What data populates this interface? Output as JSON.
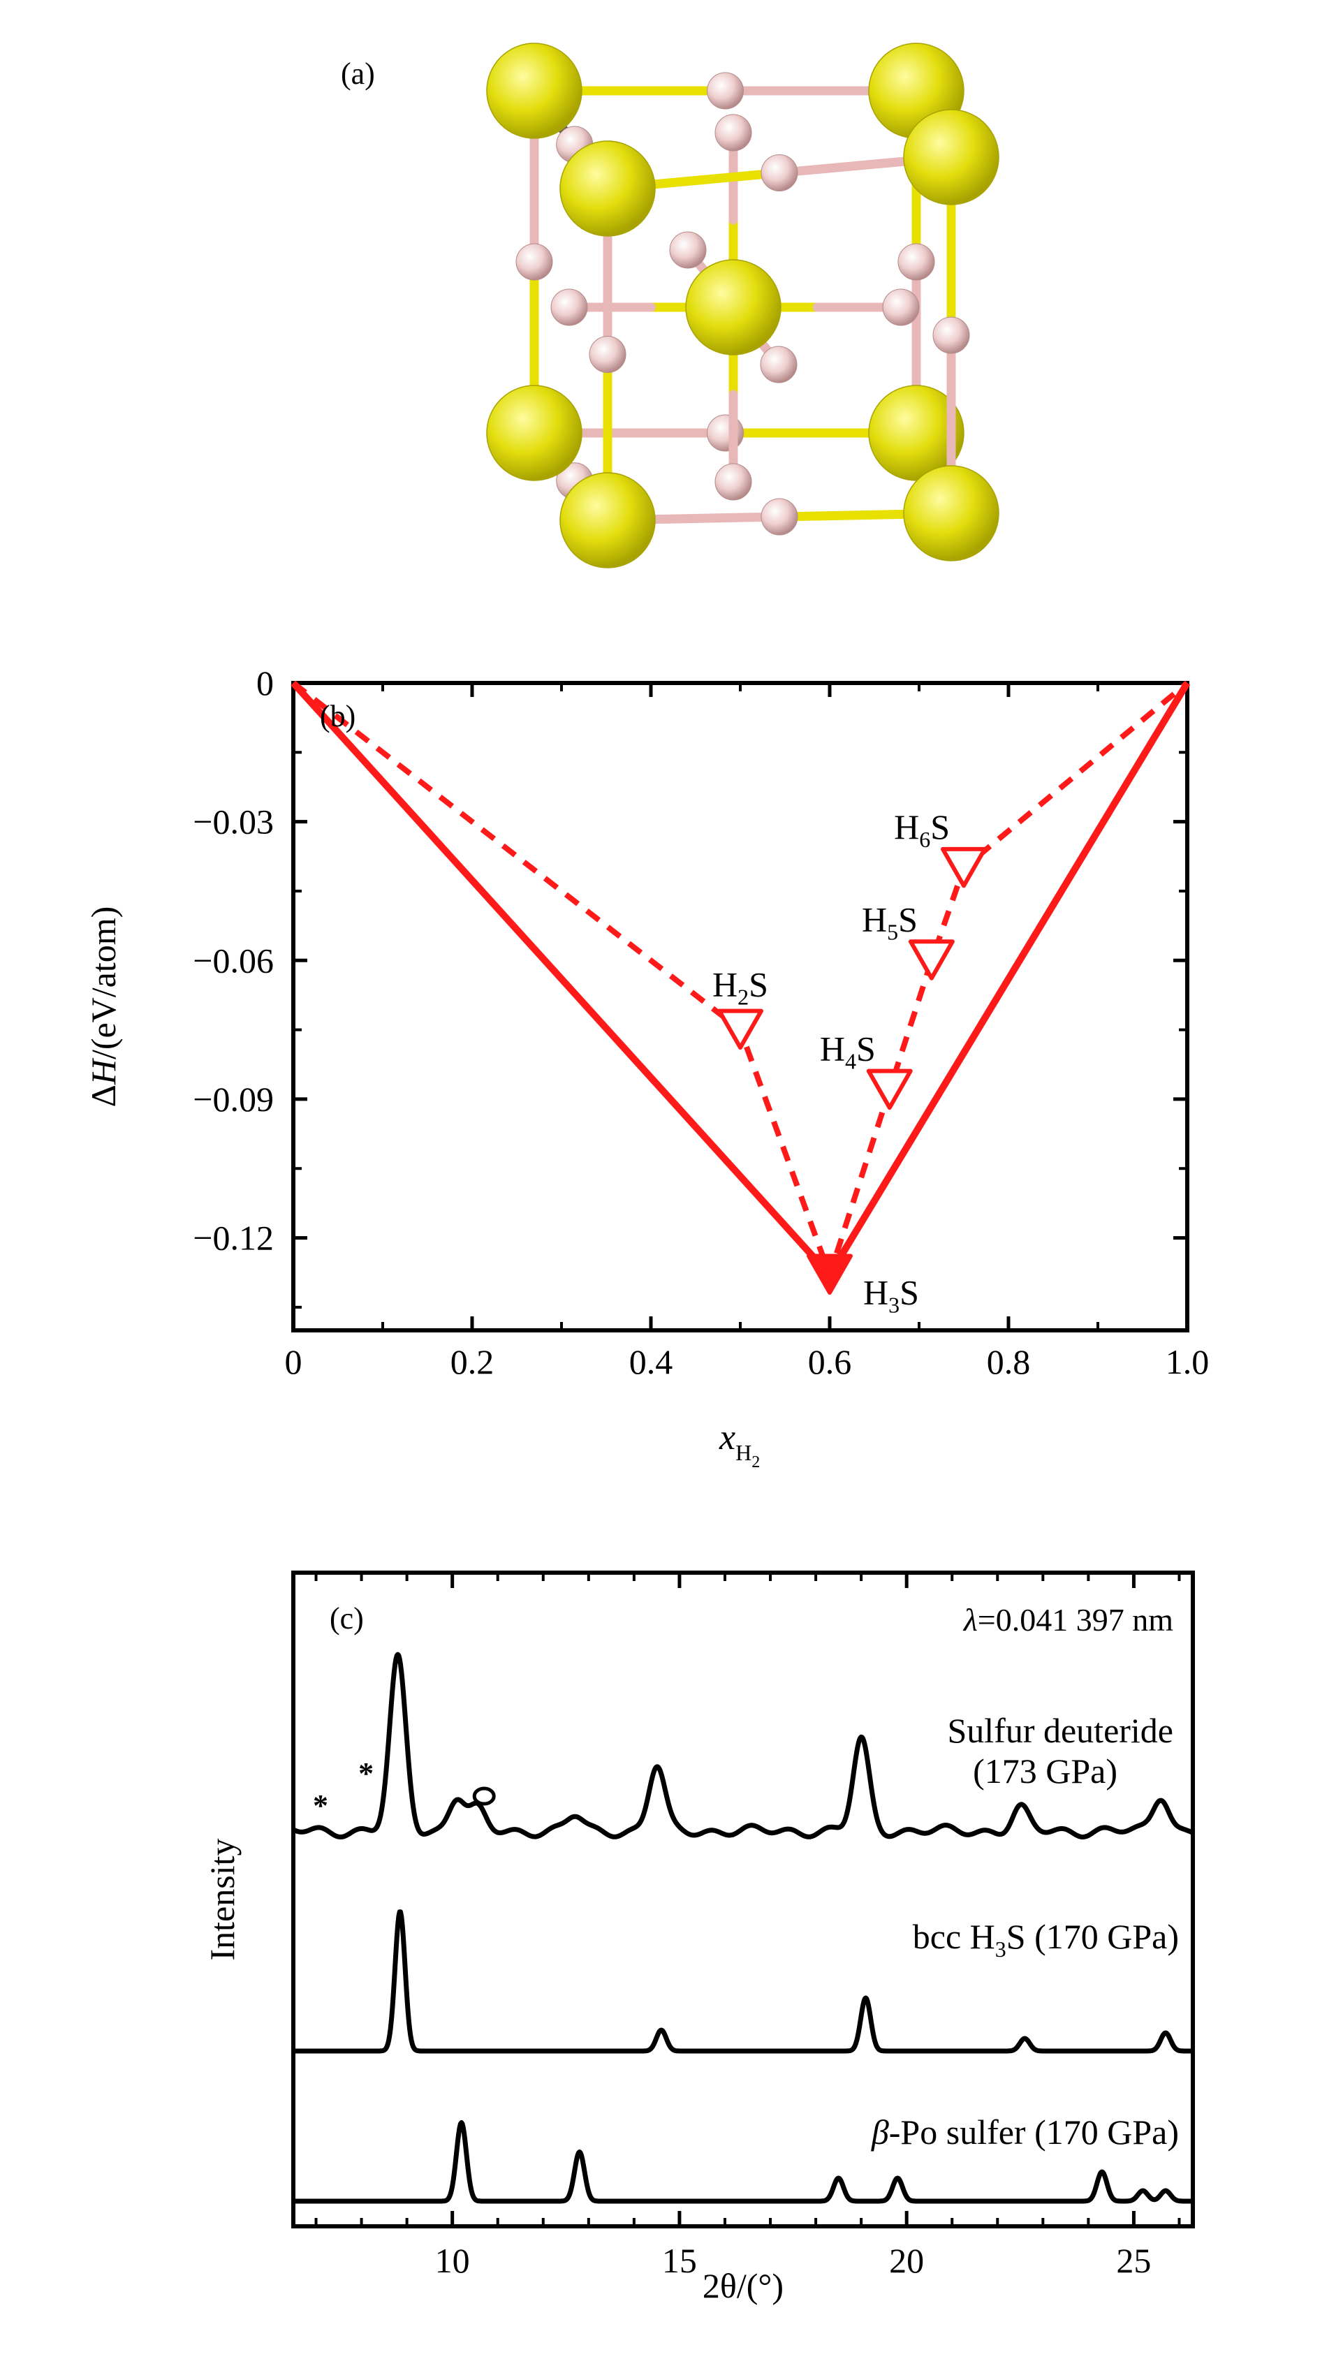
{
  "panels": {
    "a": {
      "label": "(a)"
    },
    "b": {
      "label": "(b)"
    },
    "c": {
      "label": "(c)"
    }
  },
  "colors": {
    "sulfur": "#e3de0e",
    "sulfur_dark": "#a8a300",
    "hydrogen": "#efcfcf",
    "hydrogen_dark": "#b58a8a",
    "bond_yellow": "#e8e000",
    "bond_pink": "#e8b8b8",
    "series_red": "#ff1a1a",
    "line_black": "#000000"
  },
  "chart_data": [
    {
      "type": "line",
      "panel": "b",
      "xlabel": "x",
      "xlabel_sub": "H",
      "xlabel_subsub": "2",
      "ylabel_prefix": "ΔH",
      "ylabel_suffix": "/(eV/atom)",
      "xlim": [
        0,
        1.0
      ],
      "ylim": [
        -0.14,
        0
      ],
      "xticks": [
        0,
        0.2,
        0.4,
        0.6,
        0.8,
        1.0
      ],
      "xtick_labels": [
        "0",
        "0.2",
        "0.4",
        "0.6",
        "0.8",
        "1.0"
      ],
      "yticks": [
        0,
        -0.03,
        -0.06,
        -0.09,
        -0.12
      ],
      "ytick_labels": [
        "0",
        "−0.03",
        "−0.06",
        "−0.09",
        "−0.12"
      ],
      "hull": {
        "x": [
          0,
          0.6,
          1.0
        ],
        "y": [
          0,
          -0.128,
          0
        ],
        "style": "solid"
      },
      "metastable": {
        "x": [
          0,
          0.5,
          0.6,
          0.667,
          0.714,
          0.75,
          1.0
        ],
        "y": [
          0,
          -0.075,
          -0.128,
          -0.088,
          -0.06,
          -0.04,
          0
        ],
        "style": "dashed"
      },
      "points": [
        {
          "x": 0.5,
          "y": -0.075,
          "name": "H",
          "sub": "2",
          "suffix": "S",
          "filled": false
        },
        {
          "x": 0.667,
          "y": -0.088,
          "name": "H",
          "sub": "4",
          "suffix": "S",
          "filled": false
        },
        {
          "x": 0.714,
          "y": -0.06,
          "name": "H",
          "sub": "5",
          "suffix": "S",
          "filled": false
        },
        {
          "x": 0.75,
          "y": -0.04,
          "name": "H",
          "sub": "6",
          "suffix": "S",
          "filled": false
        },
        {
          "x": 0.6,
          "y": -0.128,
          "name": "H",
          "sub": "3",
          "suffix": "S",
          "filled": true
        }
      ]
    },
    {
      "type": "line",
      "panel": "c",
      "xlabel": "2θ/(°)",
      "ylabel": "Intensity",
      "annotation": "λ=0.041 397 nm",
      "xlim": [
        6.5,
        26.3
      ],
      "xticks": [
        10,
        15,
        20,
        25
      ],
      "xtick_labels": [
        "10",
        "15",
        "20",
        "25"
      ],
      "series": [
        {
          "label_lines": [
            "Sulfur deuteride",
            "(173 GPa)"
          ],
          "peaks": [
            [
              8.8,
              1.0
            ],
            [
              10.1,
              0.2
            ],
            [
              10.55,
              0.12
            ],
            [
              12.7,
              0.09
            ],
            [
              14.5,
              0.38
            ],
            [
              19.0,
              0.53
            ],
            [
              22.5,
              0.13
            ],
            [
              25.6,
              0.21
            ]
          ],
          "markers": [
            {
              "x": 7.1,
              "symbol": "*"
            },
            {
              "x": 8.1,
              "symbol": "*"
            },
            {
              "x": 10.7,
              "symbol": "o"
            }
          ]
        },
        {
          "label_prefix": "bcc H",
          "label_sub": "3",
          "label_suffix": "S (170 GPa)",
          "peaks": [
            [
              8.85,
              1.0
            ],
            [
              14.6,
              0.15
            ],
            [
              19.1,
              0.38
            ],
            [
              22.6,
              0.09
            ],
            [
              25.7,
              0.13
            ]
          ]
        },
        {
          "label_prefix": "β",
          "label_suffix": "-Po sulfer (170 GPa)",
          "peaks": [
            [
              10.2,
              0.75
            ],
            [
              12.8,
              0.47
            ],
            [
              18.5,
              0.22
            ],
            [
              19.8,
              0.22
            ],
            [
              24.3,
              0.28
            ],
            [
              25.2,
              0.1
            ],
            [
              25.7,
              0.1
            ]
          ]
        }
      ]
    }
  ]
}
